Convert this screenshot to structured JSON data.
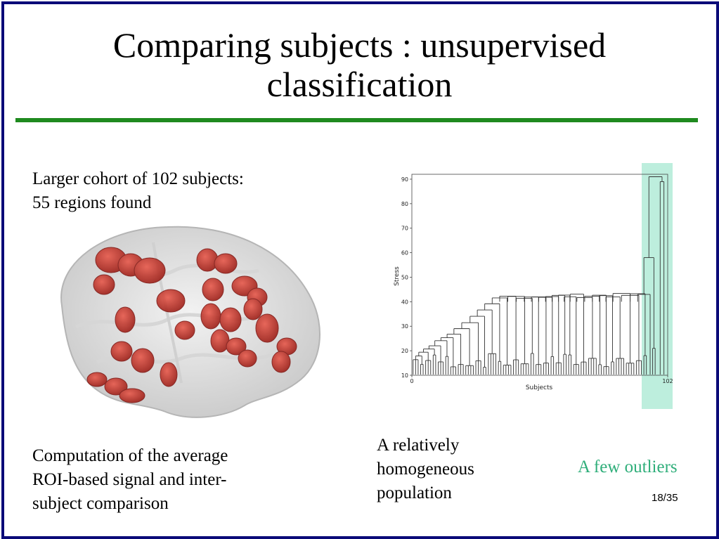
{
  "slide": {
    "title_line1": "Comparing subjects : unsupervised",
    "title_line2": "classification",
    "cohort_line1": "Larger cohort of 102 subjects:",
    "cohort_line2": "55 regions found",
    "computation_line1": "Computation of the average",
    "computation_line2": "ROI-based signal and inter-",
    "computation_line3": "subject comparison",
    "homog_line1": "A relatively",
    "homog_line2": "homogeneous",
    "homog_line3": "population",
    "outliers": "A few outliers",
    "page_number": "18/35"
  },
  "colors": {
    "frame": "#0a0a78",
    "rule": "#1f8a1f",
    "outliers_text": "#2fae7a",
    "highlight": "#bdeedd",
    "roi": "#c8302a"
  },
  "chart_data": {
    "type": "dendrogram",
    "xlabel": "Subjects",
    "ylabel": "Stress",
    "x_ticks": [
      "0",
      "102"
    ],
    "y_ticks": [
      10,
      20,
      30,
      40,
      50,
      60,
      70,
      80,
      90
    ],
    "ylim": [
      10,
      92
    ],
    "n_leaves": 102,
    "highlight": "outlier subjects at right end",
    "merge_heights_main": [
      17,
      20,
      21,
      22,
      23,
      25,
      27,
      28,
      29,
      30,
      32,
      33,
      34,
      35,
      36,
      37,
      38,
      39,
      40
    ],
    "outlier_merge_heights": [
      21,
      43,
      58,
      89,
      91
    ]
  }
}
